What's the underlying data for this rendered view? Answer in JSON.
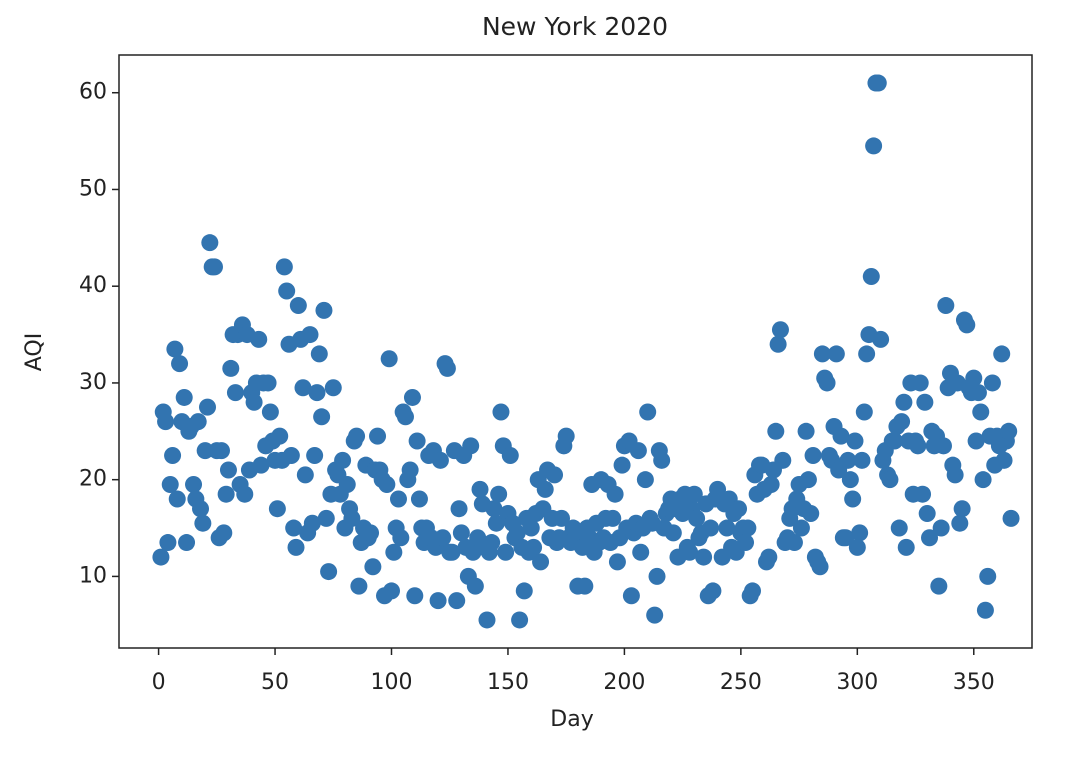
{
  "chart_data": {
    "type": "scatter",
    "title": "New York 2020",
    "x_label": "Day",
    "y_label": "AQI",
    "color": "#3274b0",
    "xlim": [
      -17,
      375
    ],
    "ylim": [
      2.6,
      63.9
    ],
    "xticks": [
      0,
      50,
      100,
      150,
      200,
      250,
      300,
      350
    ],
    "yticks": [
      10,
      20,
      30,
      40,
      50,
      60
    ],
    "x": [
      1,
      2,
      3,
      4,
      5,
      6,
      7,
      8,
      9,
      10,
      11,
      12,
      13,
      14,
      15,
      16,
      17,
      18,
      19,
      20,
      21,
      22,
      23,
      24,
      25,
      26,
      27,
      28,
      29,
      30,
      31,
      32,
      33,
      34,
      35,
      36,
      37,
      38,
      39,
      40,
      41,
      42,
      43,
      44,
      45,
      46,
      47,
      48,
      49,
      50,
      51,
      52,
      53,
      54,
      55,
      56,
      57,
      58,
      59,
      60,
      61,
      62,
      63,
      64,
      65,
      66,
      67,
      68,
      69,
      70,
      71,
      72,
      73,
      74,
      75,
      76,
      77,
      78,
      79,
      80,
      81,
      82,
      83,
      84,
      85,
      86,
      87,
      88,
      89,
      90,
      91,
      92,
      93,
      94,
      95,
      96,
      97,
      98,
      99,
      100,
      101,
      102,
      103,
      104,
      105,
      106,
      107,
      108,
      109,
      110,
      111,
      112,
      113,
      114,
      115,
      116,
      117,
      118,
      119,
      120,
      121,
      122,
      123,
      124,
      125,
      126,
      127,
      128,
      129,
      130,
      131,
      132,
      133,
      134,
      135,
      136,
      137,
      138,
      139,
      140,
      141,
      142,
      143,
      144,
      145,
      146,
      147,
      148,
      149,
      150,
      151,
      152,
      153,
      154,
      155,
      156,
      157,
      158,
      159,
      160,
      161,
      162,
      163,
      164,
      165,
      166,
      167,
      168,
      169,
      170,
      171,
      172,
      173,
      174,
      175,
      176,
      177,
      178,
      179,
      180,
      181,
      182,
      183,
      184,
      185,
      186,
      187,
      188,
      189,
      190,
      191,
      192,
      193,
      194,
      195,
      196,
      197,
      198,
      199,
      200,
      201,
      202,
      203,
      204,
      205,
      206,
      207,
      208,
      209,
      210,
      211,
      212,
      213,
      214,
      215,
      216,
      217,
      218,
      219,
      220,
      221,
      222,
      223,
      224,
      225,
      226,
      227,
      228,
      229,
      230,
      231,
      232,
      233,
      234,
      235,
      236,
      237,
      238,
      239,
      240,
      241,
      242,
      243,
      244,
      245,
      246,
      247,
      248,
      249,
      250,
      251,
      252,
      253,
      254,
      255,
      256,
      257,
      258,
      259,
      260,
      261,
      262,
      263,
      264,
      265,
      266,
      267,
      268,
      269,
      270,
      271,
      272,
      273,
      274,
      275,
      276,
      277,
      278,
      279,
      280,
      281,
      282,
      283,
      284,
      285,
      286,
      287,
      288,
      289,
      290,
      291,
      292,
      293,
      294,
      295,
      296,
      297,
      298,
      299,
      300,
      301,
      302,
      303,
      304,
      305,
      306,
      307,
      308,
      309,
      310,
      311,
      312,
      313,
      314,
      315,
      316,
      317,
      318,
      319,
      320,
      321,
      322,
      323,
      324,
      325,
      326,
      327,
      328,
      329,
      330,
      331,
      332,
      333,
      334,
      335,
      336,
      337,
      338,
      339,
      340,
      341,
      342,
      343,
      344,
      345,
      346,
      347,
      348,
      349,
      350,
      351,
      352,
      353,
      354,
      355,
      356,
      357,
      358,
      359,
      360,
      361,
      362,
      363,
      364,
      365,
      366
    ],
    "values": [
      12,
      27,
      26,
      13.5,
      19.5,
      22.5,
      33.5,
      18,
      32,
      26,
      28.5,
      13.5,
      25,
      25.5,
      19.5,
      18,
      26,
      17,
      15.5,
      23,
      27.5,
      44.5,
      42,
      42,
      23,
      14,
      23,
      14.5,
      18.5,
      21,
      31.5,
      35,
      29,
      35,
      19.5,
      36,
      18.5,
      35,
      21,
      29,
      28,
      30,
      34.5,
      21.5,
      30,
      23.5,
      30,
      27,
      24,
      22,
      17,
      24.5,
      22,
      42,
      39.5,
      34,
      22.5,
      15,
      13,
      38,
      34.5,
      29.5,
      20.5,
      14.5,
      35,
      15.5,
      22.5,
      29,
      33,
      26.5,
      37.5,
      16,
      10.5,
      18.5,
      29.5,
      21,
      20.5,
      18.5,
      22,
      15,
      19.5,
      17,
      16,
      24,
      24.5,
      9,
      13.5,
      15,
      21.5,
      14,
      14.5,
      11,
      21,
      24.5,
      21,
      20,
      8,
      19.5,
      32.5,
      8.5,
      12.5,
      15,
      18,
      14,
      27,
      26.5,
      20,
      21,
      28.5,
      8,
      24,
      18,
      15,
      13.5,
      15,
      22.5,
      14,
      23,
      13,
      7.5,
      22,
      14,
      32,
      31.5,
      12.5,
      12.5,
      23,
      7.5,
      17,
      14.5,
      22.5,
      13,
      10,
      23.5,
      12.5,
      9,
      14,
      19,
      17.5,
      13,
      5.5,
      12.5,
      13.5,
      17,
      15.5,
      18.5,
      27,
      23.5,
      12.5,
      16.5,
      22.5,
      15.5,
      14,
      14.5,
      5.5,
      13,
      8.5,
      16,
      12.5,
      15,
      13,
      16.5,
      20,
      11.5,
      17,
      19,
      21,
      14,
      16,
      20.5,
      13.5,
      14,
      16,
      23.5,
      24.5,
      14,
      13.5,
      15,
      14,
      9,
      14.5,
      13,
      9,
      15,
      14,
      19.5,
      12.5,
      15.5,
      13.5,
      20,
      14,
      16,
      19.5,
      13.5,
      16,
      18.5,
      11.5,
      14,
      21.5,
      23.5,
      15,
      24,
      8,
      14.5,
      15.5,
      23,
      12.5,
      15,
      20,
      27,
      16,
      15.5,
      6,
      10,
      23,
      22,
      15,
      16.5,
      17,
      18,
      14.5,
      17,
      12,
      18,
      16.5,
      18.5,
      13,
      12.5,
      17,
      18.5,
      16,
      14,
      14.5,
      12,
      17.5,
      8,
      15,
      8.5,
      18,
      19,
      18,
      12,
      17.5,
      15,
      18,
      13,
      16.5,
      12.5,
      17,
      14.5,
      15,
      13.5,
      15,
      8,
      8.5,
      20.5,
      18.5,
      21.5,
      21.5,
      19,
      11.5,
      12,
      19.5,
      21,
      25,
      34,
      35.5,
      22,
      13.5,
      14,
      16,
      17,
      13.5,
      18,
      19.5,
      15,
      17,
      25,
      20,
      16.5,
      22.5,
      12,
      11.5,
      11,
      33,
      30.5,
      30,
      22.5,
      22,
      25.5,
      33,
      21,
      24.5,
      14,
      14,
      22,
      20,
      18,
      24,
      13,
      14.5,
      22,
      27,
      33,
      35,
      41,
      54.5,
      61,
      61,
      34.5,
      22,
      23,
      20.5,
      20,
      24,
      24,
      25.5,
      15,
      26,
      28,
      13,
      24,
      30,
      18.5,
      24,
      23.5,
      30,
      18.5,
      28,
      16.5,
      14,
      25,
      23.5,
      24.5,
      9,
      15,
      23.5,
      38,
      29.5,
      31,
      21.5,
      20.5,
      30,
      15.5,
      17,
      36.5,
      36,
      29.5,
      29,
      30.5,
      24,
      29,
      27,
      20,
      6.5,
      10,
      24.5,
      30,
      21.5,
      24.5,
      23.5,
      33,
      22,
      24,
      25,
      16
    ]
  }
}
